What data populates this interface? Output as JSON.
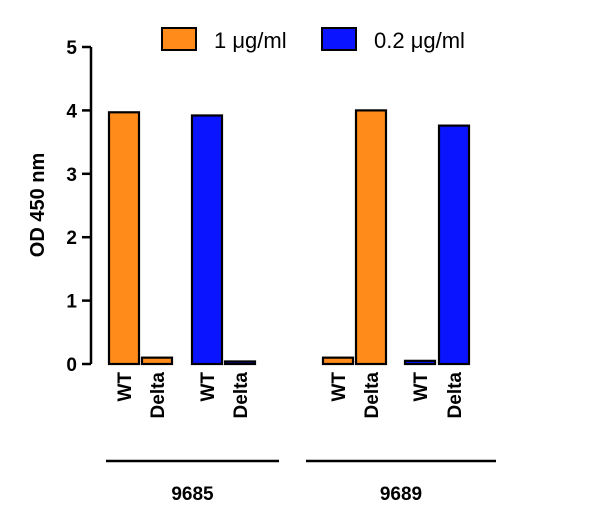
{
  "chart_data": {
    "type": "bar",
    "ylabel": "OD 450 nm",
    "ylim": [
      0,
      5
    ],
    "yticks": [
      "0",
      "1",
      "2",
      "3",
      "4",
      "5"
    ],
    "categories": [
      "WT",
      "Delta",
      "WT",
      "Delta",
      "WT",
      "Delta",
      "WT",
      "Delta"
    ],
    "groups": [
      "9685",
      "9689"
    ],
    "series": [
      {
        "name": "1 μg/ml",
        "color": "#ff8c1a"
      },
      {
        "name": "0.2 μg/ml",
        "color": "#0a14ff"
      }
    ],
    "bars": [
      {
        "group": "9685",
        "category": "WT",
        "series": "1 μg/ml",
        "value": 3.97
      },
      {
        "group": "9685",
        "category": "Delta",
        "series": "1 μg/ml",
        "value": 0.1
      },
      {
        "group": "9685",
        "category": "WT",
        "series": "0.2 μg/ml",
        "value": 3.92
      },
      {
        "group": "9685",
        "category": "Delta",
        "series": "0.2 μg/ml",
        "value": 0.04
      },
      {
        "group": "9689",
        "category": "WT",
        "series": "1 μg/ml",
        "value": 0.1
      },
      {
        "group": "9689",
        "category": "Delta",
        "series": "1 μg/ml",
        "value": 4.0
      },
      {
        "group": "9689",
        "category": "WT",
        "series": "0.2 μg/ml",
        "value": 0.05
      },
      {
        "group": "9689",
        "category": "Delta",
        "series": "0.2 μg/ml",
        "value": 3.76
      }
    ],
    "legend": "top-right",
    "grid": false
  }
}
